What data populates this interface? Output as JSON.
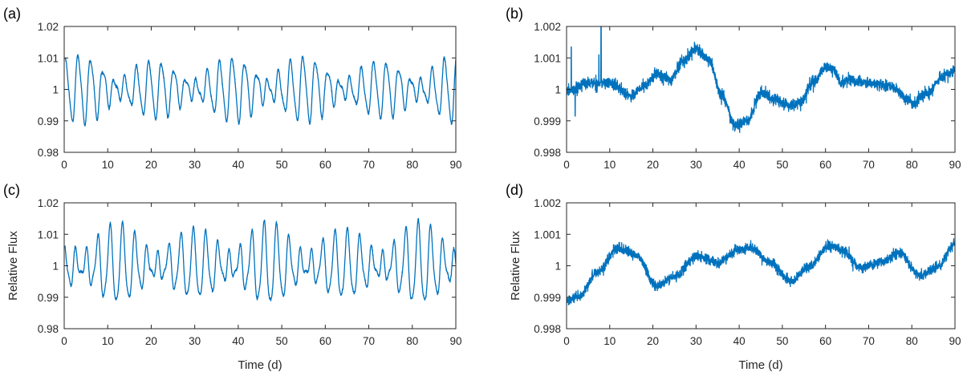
{
  "line_color": "#0072BD",
  "axis_color": "#262626",
  "chart_data": [
    {
      "panel": "(a)",
      "type": "line",
      "xlabel": "",
      "ylabel": "",
      "xlim": [
        0,
        90
      ],
      "ylim": [
        0.98,
        1.02
      ],
      "xticks": [
        0,
        10,
        20,
        30,
        40,
        50,
        60,
        70,
        80,
        90
      ],
      "xtick_labels": [
        "0",
        "10",
        "20",
        "30",
        "40",
        "50",
        "60",
        "70",
        "80",
        "90"
      ],
      "yticks": [
        0.98,
        0.99,
        1.0,
        1.01,
        1.02
      ],
      "ytick_labels": [
        "0.98",
        "0.99",
        "1",
        "1.01",
        "1.02"
      ],
      "grid": false,
      "series": [
        {
          "baseline": 1.0,
          "components": [
            [
              0.0062,
              2.72,
              0.3
            ],
            [
              0.0035,
              3.23,
              1.7
            ],
            [
              0.0014,
              1.36,
              0.9
            ]
          ],
          "envelope": {
            "amp": 0.0025,
            "period": 45,
            "phase": 1.2
          },
          "noise": 0.0002,
          "x_range": [
            0.2,
            90
          ]
        }
      ]
    },
    {
      "panel": "(b)",
      "type": "line",
      "xlabel": "",
      "ylabel": "",
      "xlim": [
        0,
        90
      ],
      "ylim": [
        0.998,
        1.002
      ],
      "xticks": [
        0,
        10,
        20,
        30,
        40,
        50,
        60,
        70,
        80,
        90
      ],
      "xtick_labels": [
        "0",
        "10",
        "20",
        "30",
        "40",
        "50",
        "60",
        "70",
        "80",
        "90"
      ],
      "yticks": [
        0.998,
        0.999,
        1.0,
        1.001,
        1.002
      ],
      "ytick_labels": [
        "0.998",
        "0.999",
        "1",
        "1.001",
        "1.002"
      ],
      "grid": false,
      "series": [
        {
          "trend_x": [
            0,
            5,
            10,
            15,
            18,
            21,
            24,
            27,
            30,
            33,
            36,
            39,
            42,
            45,
            48,
            51,
            54,
            57,
            60,
            62,
            63.5,
            65,
            70,
            75,
            80,
            84,
            87,
            90
          ],
          "trend_y": [
            0.99995,
            1.0002,
            1.0002,
            0.9998,
            1.0001,
            1.0005,
            1.0003,
            1.0009,
            1.0013,
            1.0009,
            0.9998,
            0.99885,
            0.999,
            0.9999,
            0.9997,
            0.9995,
            0.99955,
            1.0002,
            1.0007,
            1.0006,
            1.0002,
            1.0003,
            1.0002,
            1.0001,
            0.9996,
            0.9999,
            1.0004,
            1.0006
          ],
          "noise": 9e-05,
          "spikes": [
            [
              1.1,
              1.00135
            ],
            [
              2.0,
              0.99915
            ],
            [
              7.5,
              1.0011
            ],
            [
              8.0,
              1.002
            ]
          ],
          "x_range": [
            0,
            90
          ]
        }
      ]
    },
    {
      "panel": "(c)",
      "type": "line",
      "xlabel": "Time (d)",
      "ylabel": "Relative Flux",
      "xlim": [
        0,
        90
      ],
      "ylim": [
        0.98,
        1.02
      ],
      "xticks": [
        0,
        10,
        20,
        30,
        40,
        50,
        60,
        70,
        80,
        90
      ],
      "xtick_labels": [
        "0",
        "10",
        "20",
        "30",
        "40",
        "50",
        "60",
        "70",
        "80",
        "90"
      ],
      "yticks": [
        0.98,
        0.99,
        1.0,
        1.01,
        1.02
      ],
      "ytick_labels": [
        "0.98",
        "0.99",
        "1",
        "1.01",
        "1.02"
      ],
      "grid": false,
      "series": [
        {
          "baseline": 1.0,
          "components": [
            [
              0.0075,
              2.72,
              2.1
            ],
            [
              0.0042,
              3.23,
              0.4
            ],
            [
              0.0018,
              1.36,
              2.6
            ]
          ],
          "envelope": {
            "amp": 0.0022,
            "period": 38,
            "phase": 0.3
          },
          "noise": 0.0002,
          "x_range": [
            0.2,
            90
          ]
        }
      ]
    },
    {
      "panel": "(d)",
      "type": "line",
      "xlabel": "Time (d)",
      "ylabel": "Relative Flux",
      "xlim": [
        0,
        90
      ],
      "ylim": [
        0.998,
        1.002
      ],
      "xticks": [
        0,
        10,
        20,
        30,
        40,
        50,
        60,
        70,
        80,
        90
      ],
      "xtick_labels": [
        "0",
        "10",
        "20",
        "30",
        "40",
        "50",
        "60",
        "70",
        "80",
        "90"
      ],
      "yticks": [
        0.998,
        0.999,
        1.0,
        1.001,
        1.002
      ],
      "ytick_labels": [
        "0.998",
        "0.999",
        "1",
        "1.001",
        "1.002"
      ],
      "grid": false,
      "series": [
        {
          "trend_x": [
            0,
            3,
            7,
            12,
            16,
            21,
            25,
            30,
            35,
            40,
            43,
            47,
            52,
            56,
            61,
            64,
            68,
            73,
            77,
            82,
            86,
            90
          ],
          "trend_y": [
            0.9989,
            0.999,
            0.9998,
            1.00055,
            1.00035,
            0.99935,
            0.99965,
            1.0003,
            1.0001,
            1.0005,
            1.00055,
            1.0001,
            0.9995,
            0.99995,
            1.00065,
            1.00045,
            0.99995,
            1.0001,
            1.0004,
            0.9997,
            0.99995,
            1.0007
          ],
          "noise": 8e-05,
          "spikes": [],
          "x_range": [
            0,
            90
          ]
        }
      ]
    }
  ]
}
